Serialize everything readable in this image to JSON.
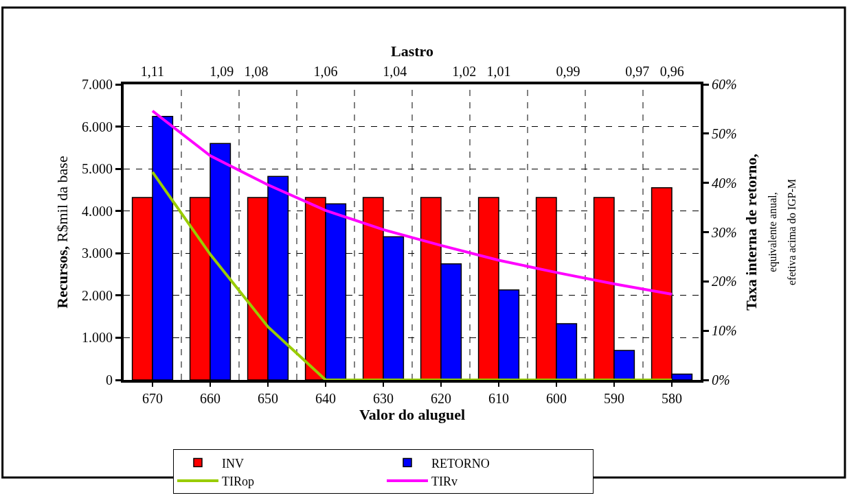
{
  "chart_data": {
    "type": "bar",
    "xlabel": "Valor do aluguel",
    "ylabel": "Recursos, R$mil da base",
    "y2label": "Taxa interna de retorno,\nequivalente anual,\nefetiva acima do IGP-M",
    "x2label": "Lastro",
    "x2lim": [
      1.1183,
      0.9517
    ],
    "x2ticks": [
      {
        "value": 1.11,
        "label": "1,11"
      },
      {
        "value": 1.09,
        "label": "1,09"
      },
      {
        "value": 1.08,
        "label": "1,08"
      },
      {
        "value": 1.06,
        "label": "1,06"
      },
      {
        "value": 1.04,
        "label": "1,04"
      },
      {
        "value": 1.02,
        "label": "1,02"
      },
      {
        "value": 1.01,
        "label": "1,01"
      },
      {
        "value": 0.99,
        "label": "0,99"
      },
      {
        "value": 0.97,
        "label": "0,97"
      },
      {
        "value": 0.96,
        "label": "0,96"
      }
    ],
    "categories": [
      "670",
      "660",
      "650",
      "640",
      "630",
      "620",
      "610",
      "600",
      "590",
      "580"
    ],
    "series": [
      {
        "name": "INV",
        "color": "#ff0000",
        "values": [
          4320,
          4320,
          4320,
          4320,
          4320,
          4320,
          4320,
          4320,
          4320,
          4550
        ]
      },
      {
        "name": "RETORNO",
        "color": "#0000ff",
        "values": [
          6240,
          5600,
          4820,
          4170,
          3390,
          2750,
          2130,
          1330,
          700,
          140
        ]
      },
      {
        "name": "TIRop",
        "color": "#99cc00",
        "type": "line",
        "axis": "y2",
        "values": [
          42.2,
          25.5,
          10.8,
          0,
          0,
          0,
          0,
          0,
          0,
          0
        ]
      },
      {
        "name": "TIRv",
        "color": "#ff00ff",
        "type": "line",
        "axis": "y2",
        "values": [
          54.6,
          45.5,
          39.6,
          34.4,
          30.5,
          27.3,
          24.3,
          21.8,
          19.5,
          17.4
        ]
      }
    ],
    "ylim": [
      0,
      7000
    ],
    "yticks": [
      0,
      {
        "value": 1000,
        "label": "1.000"
      },
      {
        "value": 2000,
        "label": "2.000"
      },
      {
        "value": 3000,
        "label": "3.000"
      },
      {
        "value": 4000,
        "label": "4.000"
      },
      {
        "value": 5000,
        "label": "5.000"
      },
      {
        "value": 6000,
        "label": "6.000"
      },
      {
        "value": 7000,
        "label": "7.000"
      }
    ],
    "y2lim": [
      0,
      60
    ],
    "y2ticks": [
      {
        "value": 0,
        "label": "0%"
      },
      {
        "value": 10,
        "label": "10%"
      },
      {
        "value": 20,
        "label": "20%"
      },
      {
        "value": 30,
        "label": "30%"
      },
      {
        "value": 40,
        "label": "40%"
      },
      {
        "value": 50,
        "label": "50%"
      },
      {
        "value": 60,
        "label": "60%"
      }
    ],
    "grid": true,
    "legend": "bottom",
    "marker": "none",
    "line_style": "solid"
  }
}
